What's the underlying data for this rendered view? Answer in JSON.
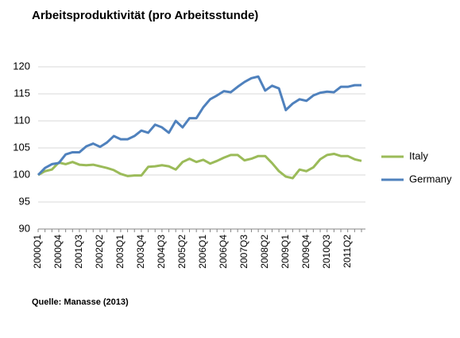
{
  "chart_data": {
    "type": "line",
    "title": "Arbeitsproduktivität (pro Arbeitsstunde)",
    "source": "Quelle: Manasse (2013)",
    "categories": [
      "2000Q1",
      null,
      null,
      "2000Q4",
      null,
      null,
      "2001Q3",
      null,
      null,
      "2002Q2",
      null,
      null,
      "2003Q1",
      null,
      null,
      "2003Q4",
      null,
      null,
      "2004Q3",
      null,
      null,
      "2005Q2",
      null,
      null,
      "2006Q1",
      null,
      null,
      "2006Q4",
      null,
      null,
      "2007Q3",
      null,
      null,
      "2008Q2",
      null,
      null,
      "2009Q1",
      null,
      null,
      "2009Q4",
      null,
      null,
      "2010Q3",
      null,
      null,
      "2011Q2",
      null,
      null
    ],
    "series": [
      {
        "name": "Italy",
        "color": "#9bbb59",
        "values": [
          100,
          100.7,
          101,
          102.3,
          102,
          102.4,
          101.9,
          101.8,
          101.9,
          101.6,
          101.3,
          100.9,
          100.2,
          99.8,
          99.9,
          99.9,
          101.5,
          101.6,
          101.8,
          101.6,
          101,
          102.4,
          103,
          102.4,
          102.8,
          102.1,
          102.6,
          103.2,
          103.7,
          103.7,
          102.7,
          103,
          103.5,
          103.5,
          102.2,
          100.7,
          99.7,
          99.4,
          101,
          100.7,
          101.4,
          102.9,
          103.7,
          103.9,
          103.5,
          103.5,
          102.9,
          102.6
        ]
      },
      {
        "name": "Germany",
        "color": "#4f81bd",
        "values": [
          100,
          101.3,
          102,
          102.2,
          103.8,
          104.2,
          104.2,
          105.3,
          105.8,
          105.2,
          106,
          107.2,
          106.6,
          106.6,
          107.2,
          108.2,
          107.8,
          109.3,
          108.8,
          107.8,
          110,
          108.8,
          110.5,
          110.5,
          112.5,
          114,
          114.7,
          115.5,
          115.3,
          116.3,
          117.2,
          117.9,
          118.2,
          115.6,
          116.5,
          116,
          112,
          113.2,
          114,
          113.7,
          114.7,
          115.2,
          115.4,
          115.3,
          116.3,
          116.3,
          116.6,
          116.6
        ]
      }
    ],
    "ylim": [
      90,
      120
    ],
    "yticks": [
      90,
      95,
      100,
      105,
      110,
      115,
      120
    ],
    "grid": true,
    "legend": "right"
  }
}
